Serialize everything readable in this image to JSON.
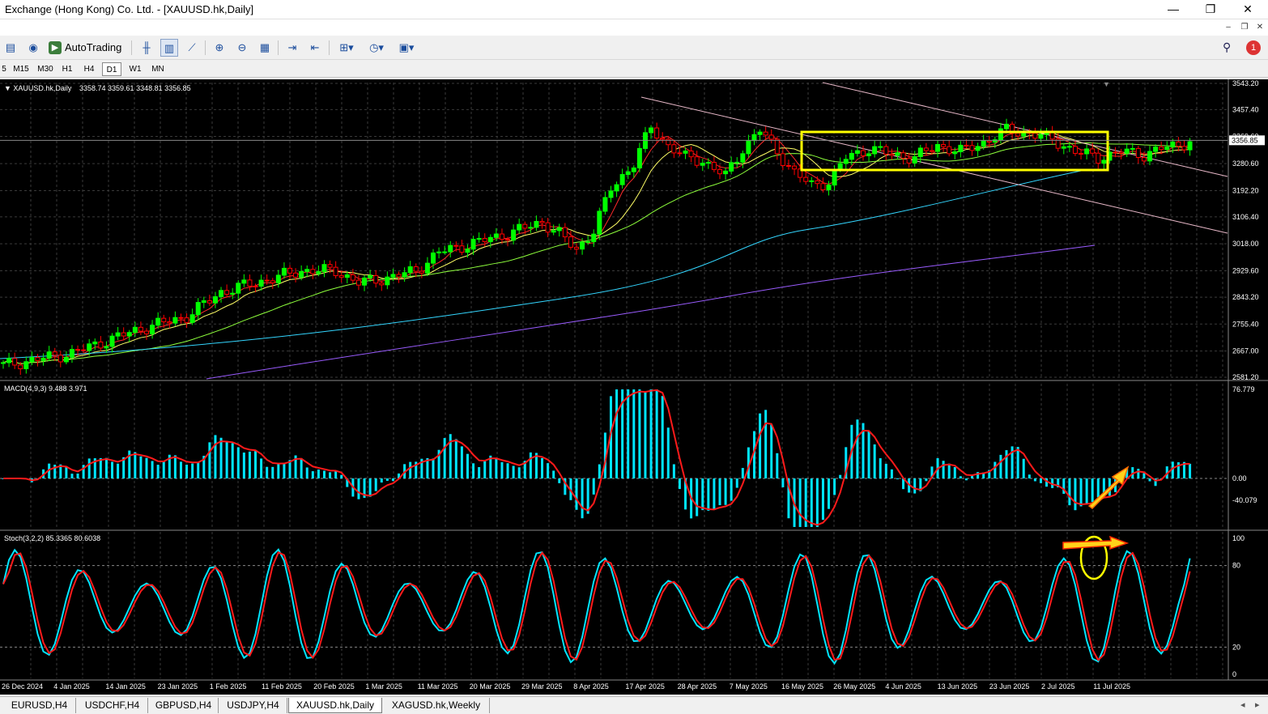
{
  "window": {
    "title": "Exchange (Hong Kong) Co. Ltd. - [XAUUSD.hk,Daily]",
    "minimize": "—",
    "maximize": "❐",
    "close": "✕"
  },
  "mdi": {
    "minimize": "–",
    "restore": "❐",
    "close": "✕"
  },
  "toolbar": {
    "autotrading_label": "AutoTrading",
    "icons": [
      "profile-icon",
      "signal-icon",
      "autotrading-icon",
      "bar-chart-icon",
      "candle-chart-icon",
      "line-chart-icon",
      "zoom-in-icon",
      "zoom-out-icon",
      "tile-icon",
      "autoscroll-icon",
      "chart-shift-icon",
      "indicators-icon",
      "periods-icon",
      "templates-icon",
      "search-icon"
    ],
    "notification_count": "1"
  },
  "timeframes": [
    "5",
    "M15",
    "M30",
    "H1",
    "H4",
    "D1",
    "W1",
    "MN"
  ],
  "active_timeframe": "D1",
  "chart_info": {
    "label": "XAUUSD.hk,Daily",
    "ohlc": "3358.74 3359.61 3348.81 3356.85",
    "macd_label": "MACD(4,9,3) 9.488 3.971",
    "stoch_label": "Stoch(3,2,2) 85.3365 80.6038"
  },
  "chart_data": {
    "type": "candlestick",
    "price_ticks": [
      "3543.20",
      "3457.40",
      "3369.60",
      "3280.60",
      "3192.20",
      "3106.40",
      "3018.00",
      "2929.60",
      "2843.20",
      "2755.40",
      "2667.00",
      "2581.20"
    ],
    "current_price": "3356.85",
    "macd_ticks": [
      "76.779",
      "0.00",
      "-40.079"
    ],
    "stoch_ticks": [
      "100",
      "80",
      "20",
      "0"
    ],
    "date_labels": [
      "26 Dec 2024",
      "4 Jan 2025",
      "14 Jan 2025",
      "23 Jan 2025",
      "1 Feb 2025",
      "11 Feb 2025",
      "20 Feb 2025",
      "1 Mar 2025",
      "11 Mar 2025",
      "20 Mar 2025",
      "29 Mar 2025",
      "8 Apr 2025",
      "17 Apr 2025",
      "28 Apr 2025",
      "7 May 2025",
      "16 May 2025",
      "26 May 2025",
      "4 Jun 2025",
      "13 Jun 2025",
      "23 Jun 2025",
      "2 Jul 2025",
      "11 Jul 2025"
    ],
    "colors": {
      "bull": "#00ff00",
      "bear": "#ff0000",
      "grid": "#3a3a3a",
      "macd_hist": "#00e5ff",
      "macd_signal": "#ff1a1a",
      "stoch_main": "#00e5ff",
      "stoch_signal": "#ff1a1a",
      "ma_fast": "#ff2a2a",
      "ma_mid": "#ffff66",
      "ma_slow": "#8eff3c",
      "ma_100": "#33d6ff",
      "ma_200": "#9a5cff",
      "highlight": "#ffff00"
    }
  },
  "tabs": [
    "EURUSD,H4",
    "USDCHF,H4",
    "GBPUSD,H4",
    "USDJPY,H4",
    "XAUUSD.hk,Daily",
    "XAGUSD.hk,Weekly"
  ],
  "active_tab": "XAUUSD.hk,Daily"
}
